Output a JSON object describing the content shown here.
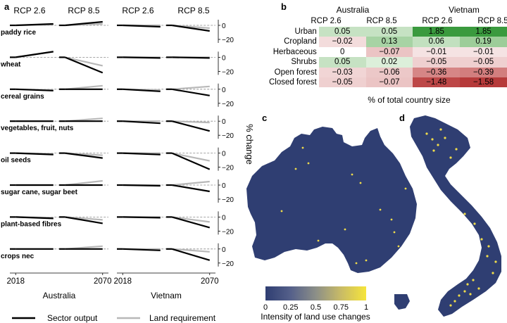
{
  "panel_labels": {
    "a": "a",
    "b": "b",
    "c": "c",
    "d": "d"
  },
  "chart_data": [
    {
      "type": "line",
      "panel": "a",
      "scenarios": [
        "RCP 2.6",
        "RCP 8.5",
        "RCP 2.6",
        "RCP 8.5"
      ],
      "countries": [
        "Australia",
        "Vietnam"
      ],
      "x": [
        2018,
        2070
      ],
      "x_ticks": [
        "2018",
        "2070"
      ],
      "xlim": [
        2010,
        2078
      ],
      "ylabel": "% change",
      "ylim": [
        -25,
        8
      ],
      "y_ticks": [
        0,
        -20
      ],
      "y_tick_labels": [
        "0",
        "−20"
      ],
      "baseline": 0,
      "legend": [
        "Sector output",
        "Land requirement"
      ],
      "legend_placement": "bottom",
      "sectors": [
        {
          "name": "paddy rice",
          "output": [
            [
              0,
              2
            ],
            [
              0,
              5
            ],
            [
              0,
              -2
            ],
            [
              0,
              -8
            ]
          ],
          "land": [
            [
              0,
              1
            ],
            [
              0,
              2
            ],
            [
              0,
              0
            ],
            [
              0,
              -4
            ]
          ]
        },
        {
          "name": "wheat",
          "output": [
            [
              0,
              8
            ],
            [
              0,
              -22
            ],
            [
              0,
              -1
            ],
            [
              0,
              -1
            ]
          ],
          "land": [
            [
              0,
              8
            ],
            [
              0,
              -12
            ],
            [
              0,
              0
            ],
            [
              0,
              0
            ]
          ]
        },
        {
          "name": "cereal grains",
          "output": [
            [
              0,
              -2
            ],
            [
              0,
              0
            ],
            [
              0,
              -3
            ],
            [
              0,
              -9
            ]
          ],
          "land": [
            [
              0,
              -1
            ],
            [
              0,
              5
            ],
            [
              0,
              -1
            ],
            [
              0,
              4
            ]
          ]
        },
        {
          "name": "vegetables, fruit, nuts",
          "output": [
            [
              0,
              0
            ],
            [
              0,
              0
            ],
            [
              0,
              -3
            ],
            [
              0,
              -14
            ]
          ],
          "land": [
            [
              0,
              0
            ],
            [
              0,
              4
            ],
            [
              0,
              0
            ],
            [
              0,
              -2
            ]
          ]
        },
        {
          "name": "oil seeds",
          "output": [
            [
              0,
              -2
            ],
            [
              0,
              -7
            ],
            [
              0,
              -2
            ],
            [
              0,
              -23
            ]
          ],
          "land": [
            [
              0,
              -1
            ],
            [
              0,
              -3
            ],
            [
              0,
              0
            ],
            [
              0,
              -11
            ]
          ]
        },
        {
          "name": "sugar cane, sugar beet",
          "output": [
            [
              0,
              0
            ],
            [
              0,
              0
            ],
            [
              0,
              -1
            ],
            [
              0,
              -9
            ]
          ],
          "land": [
            [
              0,
              0
            ],
            [
              0,
              6
            ],
            [
              0,
              0
            ],
            [
              0,
              5
            ]
          ]
        },
        {
          "name": "plant-based fibres",
          "output": [
            [
              0,
              -2
            ],
            [
              0,
              -9
            ],
            [
              0,
              -1
            ],
            [
              0,
              -15
            ]
          ],
          "land": [
            [
              0,
              -1
            ],
            [
              0,
              -4
            ],
            [
              0,
              0
            ],
            [
              0,
              -7
            ]
          ]
        },
        {
          "name": "crops nec",
          "output": [
            [
              0,
              0
            ],
            [
              0,
              0
            ],
            [
              0,
              -2
            ],
            [
              0,
              -16
            ]
          ],
          "land": [
            [
              0,
              0
            ],
            [
              0,
              4
            ],
            [
              0,
              0
            ],
            [
              0,
              -4
            ]
          ]
        }
      ]
    },
    {
      "type": "table",
      "panel": "b",
      "countries": [
        "Australia",
        "Vietnam"
      ],
      "columns": [
        "RCP 2.6",
        "RCP 8.5",
        "RCP 2.6",
        "RCP 8.5"
      ],
      "rows": [
        {
          "label": "Urban",
          "values": [
            "0.05",
            "0.05",
            "1.85",
            "1.85"
          ],
          "colors": [
            "#c6e2c3",
            "#c6e2c3",
            "#3a9a3e",
            "#3a9a3e"
          ]
        },
        {
          "label": "Cropland",
          "values": [
            "−0.02",
            "0.13",
            "0.06",
            "0.19"
          ],
          "colors": [
            "#f3dcdc",
            "#a7d3a4",
            "#c2e0bf",
            "#9dcd99"
          ]
        },
        {
          "label": "Herbaceous",
          "values": [
            "0",
            "−0.07",
            "−0.01",
            "−0.01"
          ],
          "colors": [
            "#ffffff",
            "#ebc4c4",
            "#f5e3e3",
            "#f5e3e3"
          ]
        },
        {
          "label": "Shrubs",
          "values": [
            "0.05",
            "0.02",
            "−0.05",
            "−0.05"
          ],
          "colors": [
            "#c6e2c3",
            "#dcefda",
            "#efd0d0",
            "#efd0d0"
          ]
        },
        {
          "label": "Open forest",
          "values": [
            "−0.03",
            "−0.06",
            "−0.36",
            "−0.39"
          ],
          "colors": [
            "#f1d5d5",
            "#ecc8c8",
            "#d68686",
            "#d27e7e"
          ]
        },
        {
          "label": "Closed forest",
          "values": [
            "−0.05",
            "−0.07",
            "−1.48",
            "−1.58"
          ],
          "colors": [
            "#efd0d0",
            "#ebc4c4",
            "#bd4747",
            "#b63a3a"
          ]
        }
      ],
      "caption": "% of total country size"
    },
    {
      "type": "heatmap",
      "panels": [
        "c",
        "d"
      ],
      "regions": [
        "Australia",
        "Vietnam"
      ],
      "colorbar": {
        "title": "Intensity of land use changes",
        "ticks": [
          "0",
          "0.25",
          "0.5",
          "0.75",
          "1"
        ],
        "tick_values": [
          0,
          0.25,
          0.5,
          0.75,
          1
        ],
        "range": [
          0,
          1
        ],
        "colors": [
          "#2f3e72",
          "#55608a",
          "#8c8f88",
          "#c9bb66",
          "#f6e53b"
        ]
      },
      "base_color": "#2f3e72",
      "highlight_color": "#f0dc4a"
    }
  ]
}
